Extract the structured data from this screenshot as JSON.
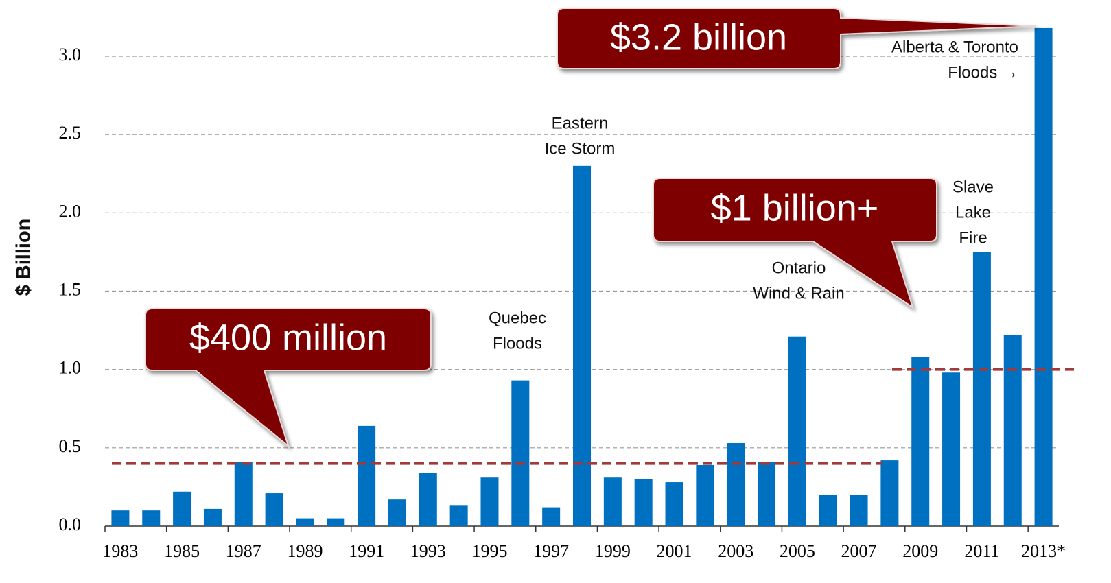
{
  "chart_data": {
    "type": "bar",
    "y_label": "$ Billion",
    "categories": [
      "1983",
      null,
      "1985",
      null,
      "1987",
      null,
      "1989",
      null,
      "1991",
      null,
      "1993",
      null,
      "1995",
      null,
      "1997",
      null,
      "1999",
      null,
      "2001",
      null,
      "2003",
      null,
      "2005",
      null,
      "2007",
      null,
      "2009",
      null,
      "2011",
      null,
      "2013*"
    ],
    "values": [
      0.1,
      0.1,
      0.22,
      0.11,
      0.41,
      0.21,
      0.05,
      0.05,
      0.64,
      0.17,
      0.34,
      0.13,
      0.31,
      0.93,
      0.12,
      2.3,
      0.31,
      0.3,
      0.28,
      0.39,
      0.53,
      0.41,
      1.21,
      0.2,
      0.2,
      0.42,
      1.08,
      0.98,
      1.75,
      1.22,
      3.18
    ],
    "color": "#0070c0",
    "ylim": [
      0,
      3.2
    ],
    "yticks": [
      {
        "value": 0,
        "label": "0.0"
      },
      0.5,
      {
        "value": 1,
        "label": "1.0"
      },
      1.5,
      {
        "value": 2,
        "label": "2.0"
      },
      2.5,
      {
        "value": 3,
        "label": "3.0"
      }
    ],
    "grid": true,
    "reference_lines": [
      0.4,
      1.0
    ],
    "reference_color": "#a33a3a",
    "callouts": [
      "$3.2 billion",
      "$1 billion+",
      "$400 million"
    ],
    "annotations": [
      [
        "Quebec",
        "Floods"
      ],
      [
        "Eastern",
        "Ice Storm"
      ],
      [
        "Ontario",
        "Wind & Rain"
      ],
      [
        "Slave",
        "Lake",
        "Fire"
      ],
      [
        "Alberta & Toronto",
        "Floods →"
      ]
    ]
  }
}
